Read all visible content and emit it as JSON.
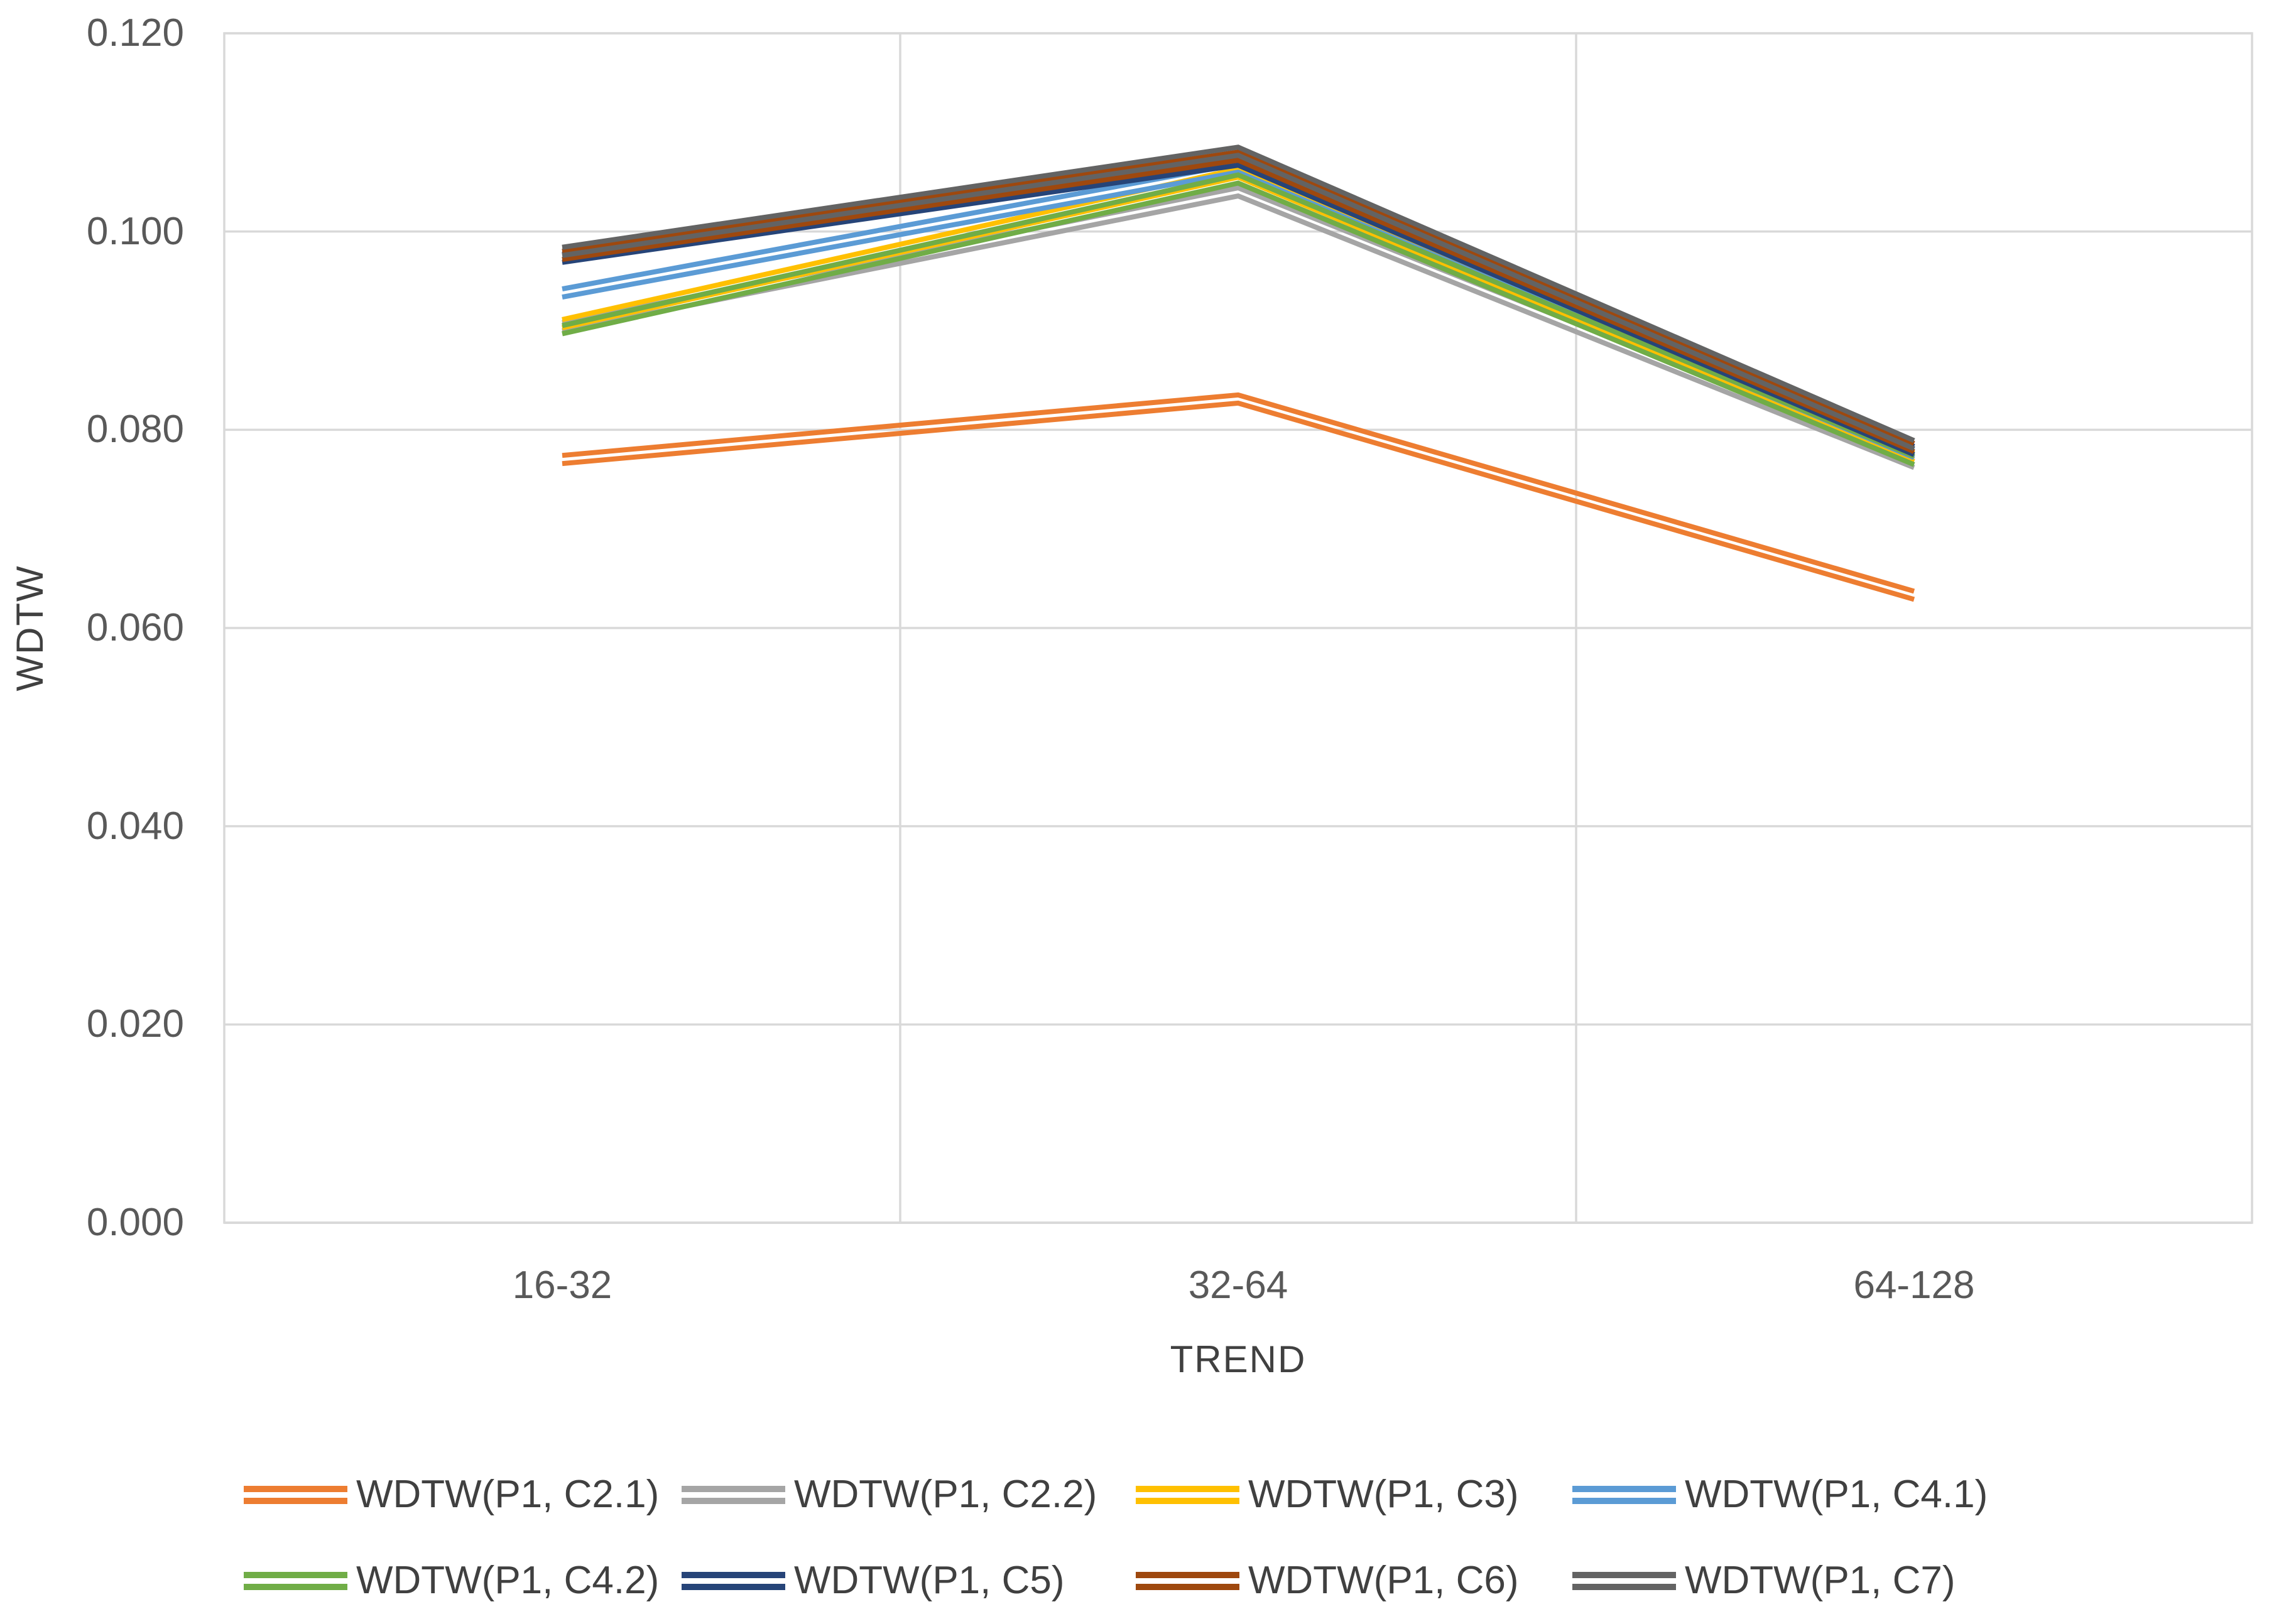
{
  "chart_data": {
    "type": "line",
    "title": "",
    "xlabel": "TREND",
    "ylabel": "WDTW",
    "categories": [
      "16-32",
      "32-64",
      "64-128"
    ],
    "series": [
      {
        "name": "WDTW(P1, C2.1)",
        "color": "#ED7D31",
        "values": [
          0.077,
          0.0831,
          0.0633
        ]
      },
      {
        "name": "WDTW(P1, C2.2)",
        "color": "#A5A5A5",
        "values": [
          0.0904,
          0.104,
          0.0766
        ]
      },
      {
        "name": "WDTW(P1, C3)",
        "color": "#FFC000",
        "values": [
          0.0907,
          0.1059,
          0.0772
        ]
      },
      {
        "name": "WDTW(P1, C4.1)",
        "color": "#5B9BD5",
        "values": [
          0.0938,
          0.1064,
          0.0776
        ]
      },
      {
        "name": "WDTW(P1, C4.2)",
        "color": "#70AD47",
        "values": [
          0.0901,
          0.1053,
          0.0769
        ]
      },
      {
        "name": "WDTW(P1, C5)",
        "color": "#264478",
        "values": [
          0.0973,
          0.1071,
          0.0779
        ]
      },
      {
        "name": "WDTW(P1, C6)",
        "color": "#9E480E",
        "values": [
          0.0976,
          0.1076,
          0.0782
        ]
      },
      {
        "name": "WDTW(P1, C7)",
        "color": "#636363",
        "values": [
          0.098,
          0.1081,
          0.0785
        ]
      }
    ],
    "ylim": [
      0.0,
      0.12
    ],
    "ytick_step": 0.02,
    "ytick_labels": [
      "0.000",
      "0.020",
      "0.040",
      "0.060",
      "0.080",
      "0.100",
      "0.120"
    ],
    "grid": "on",
    "legend_position": "bottom",
    "line_style": "double",
    "gridline_color": "#D9D9D9",
    "axis_line_color": "#BFBFBF",
    "tick_text_color": "#595959",
    "axis_title_color": "#404040"
  }
}
